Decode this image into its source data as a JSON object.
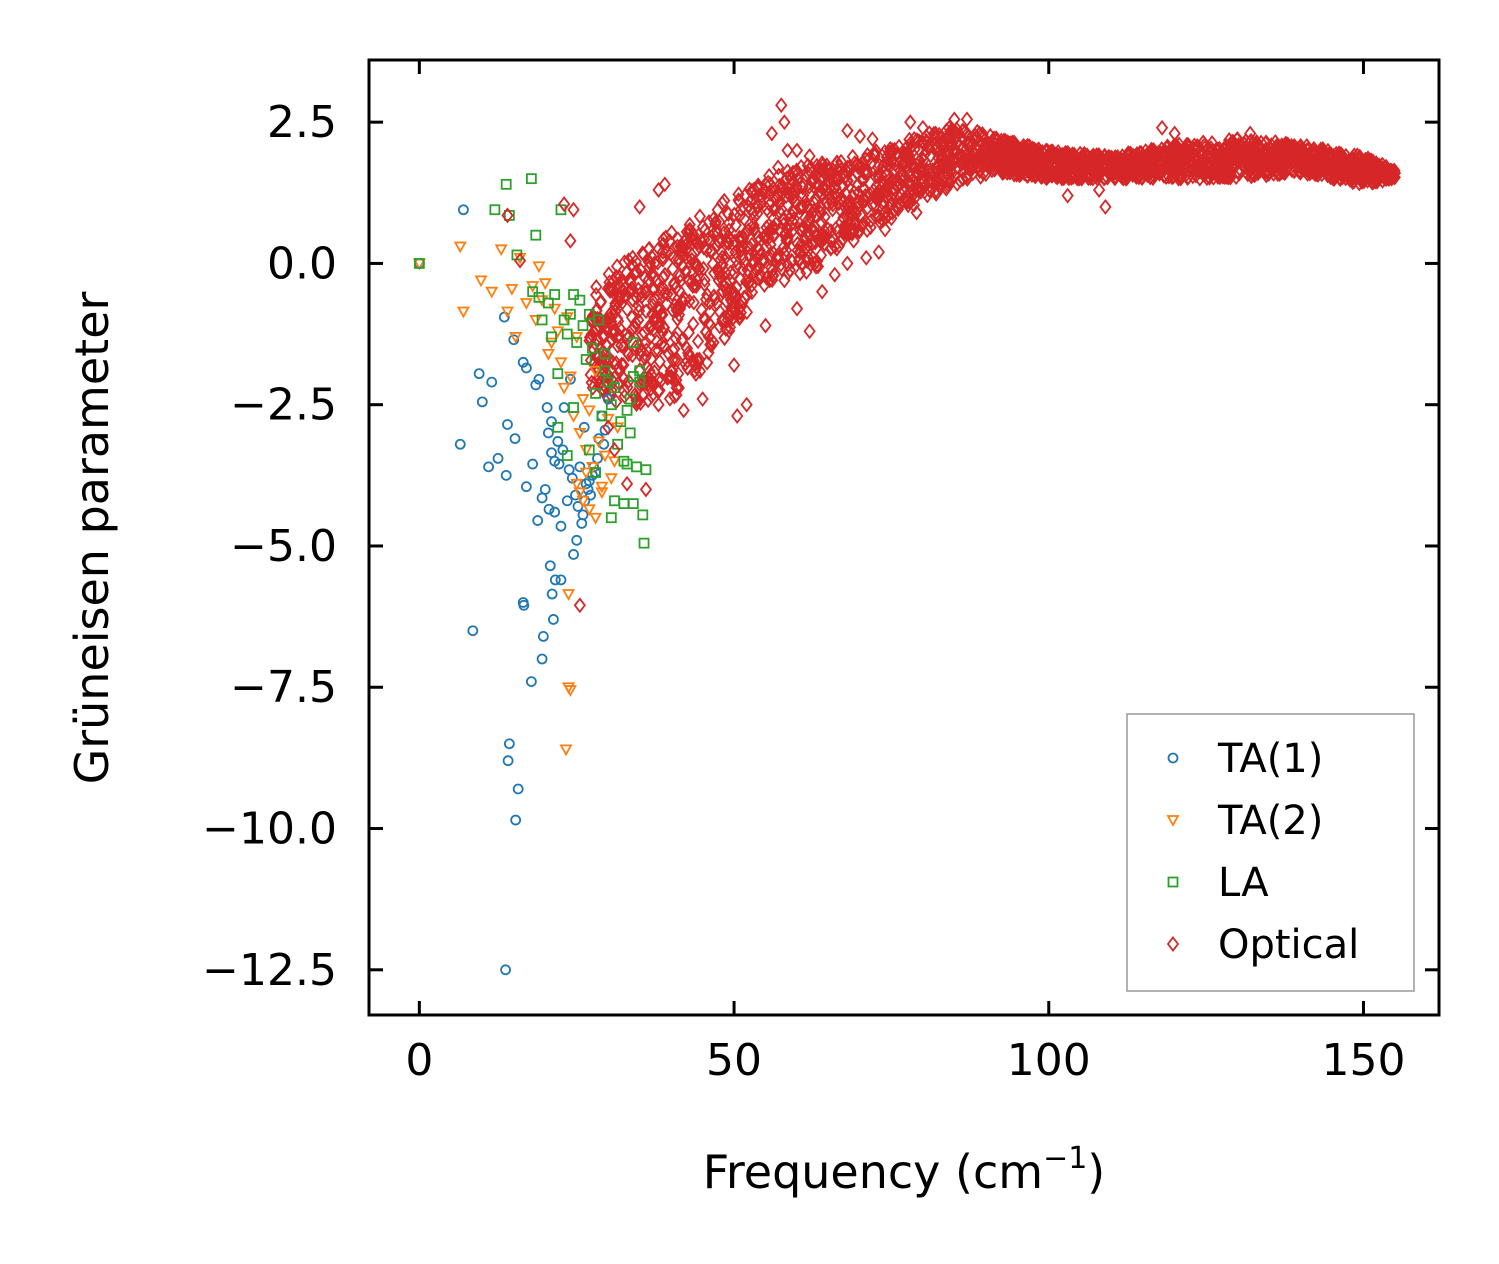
{
  "chart_data": {
    "type": "scatter",
    "title": "",
    "xlabel": "Frequency (cm",
    "xlabel_sup": "−1",
    "xlabel_close": ")",
    "ylabel": "Grüneisen parameter",
    "xlim": [
      -8,
      162
    ],
    "ylim": [
      -13.3,
      3.6
    ],
    "xticks": [
      0,
      50,
      100,
      150
    ],
    "xtick_labels": [
      "0",
      "50",
      "100",
      "150"
    ],
    "yticks": [
      2.5,
      0.0,
      -2.5,
      -5.0,
      -7.5,
      -10.0,
      -12.5
    ],
    "ytick_labels": [
      "2.5",
      "0.0",
      "−2.5",
      "−5.0",
      "−7.5",
      "−10.0",
      "−12.5"
    ],
    "grid": false,
    "legend_position": "lower-right",
    "series": [
      {
        "name": "TA(1)",
        "marker": "circle",
        "color": "#1f77b4",
        "points": [
          [
            0,
            0
          ],
          [
            7,
            0.95
          ],
          [
            6.5,
            -3.2
          ],
          [
            8.5,
            -6.5
          ],
          [
            9.5,
            -1.95
          ],
          [
            10,
            -2.45
          ],
          [
            11,
            -3.6
          ],
          [
            11.5,
            -2.1
          ],
          [
            12.5,
            -3.45
          ],
          [
            13.5,
            -0.95
          ],
          [
            13.8,
            -3.75
          ],
          [
            14,
            -2.85
          ],
          [
            13.7,
            -12.5
          ],
          [
            14.1,
            -8.8
          ],
          [
            14.3,
            -8.5
          ],
          [
            15,
            -1.35
          ],
          [
            15.2,
            -3.1
          ],
          [
            15.3,
            -9.85
          ],
          [
            15.7,
            -9.3
          ],
          [
            16.5,
            -1.75
          ],
          [
            16.5,
            -6.0
          ],
          [
            16.6,
            -6.05
          ],
          [
            17,
            -1.85
          ],
          [
            17,
            -3.95
          ],
          [
            17.8,
            -7.4
          ],
          [
            18,
            -3.55
          ],
          [
            18.5,
            -2.15
          ],
          [
            18.8,
            -4.55
          ],
          [
            19,
            -2.05
          ],
          [
            19.5,
            -4.15
          ],
          [
            19.5,
            -7.0
          ],
          [
            19.7,
            -6.6
          ],
          [
            20,
            -4.0
          ],
          [
            20.3,
            -2.55
          ],
          [
            20.5,
            -3.0
          ],
          [
            20.6,
            -4.35
          ],
          [
            20.8,
            -5.35
          ],
          [
            21,
            -3.35
          ],
          [
            21,
            -2.8
          ],
          [
            21.1,
            -5.85
          ],
          [
            21.3,
            -6.3
          ],
          [
            21.5,
            -3.5
          ],
          [
            21.5,
            -4.4
          ],
          [
            21.6,
            -5.6
          ],
          [
            22,
            -3.15
          ],
          [
            22.2,
            -3.55
          ],
          [
            22.5,
            -4.65
          ],
          [
            22.5,
            -5.6
          ],
          [
            22.8,
            -3.3
          ],
          [
            23,
            -2.55
          ],
          [
            23.5,
            -4.2
          ],
          [
            23.8,
            -3.65
          ],
          [
            24,
            -2.05
          ],
          [
            24.3,
            -3.8
          ],
          [
            24.5,
            -5.15
          ],
          [
            24.8,
            -4.1
          ],
          [
            25,
            -4.9
          ],
          [
            25.2,
            -4.3
          ],
          [
            25.5,
            -3.6
          ],
          [
            25.8,
            -4.6
          ],
          [
            26,
            -4.45
          ],
          [
            26.2,
            -2.9
          ],
          [
            26.3,
            -4.2
          ],
          [
            26.5,
            -3.9
          ],
          [
            26.8,
            -4.0
          ],
          [
            27,
            -3.85
          ],
          [
            27.2,
            -4.1
          ],
          [
            27.5,
            -3.75
          ],
          [
            27.7,
            -3.6
          ],
          [
            28,
            -3.7
          ],
          [
            28.3,
            -3.45
          ],
          [
            28.5,
            -3.1
          ],
          [
            29,
            -2.7
          ],
          [
            29.3,
            -3.2
          ],
          [
            29.5,
            -2.95
          ],
          [
            30,
            -2.4
          ]
        ]
      },
      {
        "name": "TA(2)",
        "marker": "triangle-down",
        "color": "#ff7f0e",
        "points": [
          [
            0,
            0
          ],
          [
            6.5,
            0.3
          ],
          [
            7,
            -0.85
          ],
          [
            9.8,
            -0.3
          ],
          [
            11.5,
            -0.5
          ],
          [
            13,
            0.25
          ],
          [
            14,
            -0.85
          ],
          [
            14.7,
            -0.45
          ],
          [
            15.3,
            -1.3
          ],
          [
            16,
            0.1
          ],
          [
            17,
            -0.7
          ],
          [
            18,
            -0.4
          ],
          [
            18.5,
            -1.0
          ],
          [
            19,
            -0.05
          ],
          [
            19.5,
            -0.65
          ],
          [
            20,
            -0.35
          ],
          [
            20.5,
            -1.6
          ],
          [
            21,
            -1.4
          ],
          [
            21.5,
            -0.8
          ],
          [
            22,
            -1.2
          ],
          [
            22.5,
            -1.75
          ],
          [
            23,
            -2.2
          ],
          [
            23.5,
            -0.95
          ],
          [
            23.7,
            -7.5
          ],
          [
            24,
            -7.55
          ],
          [
            23.3,
            -8.6
          ],
          [
            23.7,
            -5.85
          ],
          [
            24,
            -2.0
          ],
          [
            24.5,
            -2.7
          ],
          [
            25,
            -1.3
          ],
          [
            25.5,
            -3.0
          ],
          [
            26,
            -2.4
          ],
          [
            26.5,
            -3.3
          ],
          [
            27,
            -2.6
          ],
          [
            27.5,
            -3.6
          ],
          [
            28,
            -1.9
          ],
          [
            28.5,
            -3.15
          ],
          [
            29,
            -4.05
          ],
          [
            29.5,
            -3.4
          ],
          [
            30,
            -2.75
          ],
          [
            30.5,
            -3.8
          ],
          [
            31,
            -3.5
          ],
          [
            31.5,
            -2.9
          ],
          [
            25,
            -3.9
          ],
          [
            26,
            -4.2
          ],
          [
            27,
            -4.35
          ],
          [
            28,
            -4.5
          ],
          [
            26.5,
            -3.7
          ],
          [
            25.5,
            -4.05
          ],
          [
            29,
            -3.95
          ]
        ]
      },
      {
        "name": "LA",
        "marker": "square",
        "color": "#2ca02c",
        "points": [
          [
            0,
            0
          ],
          [
            13.8,
            1.4
          ],
          [
            17.8,
            1.5
          ],
          [
            12,
            0.95
          ],
          [
            14.3,
            0.85
          ],
          [
            15.5,
            0.15
          ],
          [
            18.5,
            0.5
          ],
          [
            22.5,
            0.95
          ],
          [
            18,
            -0.5
          ],
          [
            19,
            -0.6
          ],
          [
            19.5,
            -1.0
          ],
          [
            20.5,
            -0.7
          ],
          [
            21,
            -1.3
          ],
          [
            21.5,
            -0.55
          ],
          [
            22,
            -1.95
          ],
          [
            23,
            -1.0
          ],
          [
            23.5,
            -1.25
          ],
          [
            24,
            -0.9
          ],
          [
            24.5,
            -0.55
          ],
          [
            25,
            -1.4
          ],
          [
            25.5,
            -0.65
          ],
          [
            26,
            -1.1
          ],
          [
            26.5,
            -1.7
          ],
          [
            27,
            -0.9
          ],
          [
            27.5,
            -1.5
          ],
          [
            28,
            -2.3
          ],
          [
            28.5,
            -1.0
          ],
          [
            29,
            -2.7
          ],
          [
            29.5,
            -1.9
          ],
          [
            30,
            -2.1
          ],
          [
            30.5,
            -2.5
          ],
          [
            31,
            -2.2
          ],
          [
            31.5,
            -3.2
          ],
          [
            32,
            -2.8
          ],
          [
            32.5,
            -3.5
          ],
          [
            33,
            -2.6
          ],
          [
            33.5,
            -3.0
          ],
          [
            34,
            -2.0
          ],
          [
            34.5,
            -3.6
          ],
          [
            35,
            -1.9
          ],
          [
            35.5,
            -4.45
          ],
          [
            35.7,
            -4.95
          ],
          [
            36,
            -3.65
          ],
          [
            34,
            -1.4
          ],
          [
            33.5,
            -2.4
          ],
          [
            31,
            -4.2
          ],
          [
            32.5,
            -4.25
          ],
          [
            34,
            -4.25
          ],
          [
            30.5,
            -4.5
          ],
          [
            23.5,
            -3.4
          ],
          [
            24.5,
            -2.55
          ],
          [
            22,
            -2.9
          ],
          [
            27,
            -3.3
          ],
          [
            28,
            -3.7
          ],
          [
            33,
            -3.55
          ],
          [
            29.5,
            -1.6
          ],
          [
            35,
            -2.1
          ]
        ]
      },
      {
        "name": "Optical",
        "marker": "diamond",
        "color": "#d62728",
        "points": [
          [
            14,
            0.85
          ],
          [
            16,
            0.05
          ],
          [
            23,
            1.05
          ],
          [
            24,
            0.4
          ],
          [
            24.5,
            0.95
          ],
          [
            25.5,
            -6.05
          ],
          [
            35,
            1.0
          ],
          [
            38,
            1.3
          ],
          [
            39,
            1.4
          ],
          [
            36,
            -4.0
          ],
          [
            31,
            -3.3
          ],
          [
            33,
            -3.9
          ],
          [
            30,
            -2.9
          ],
          [
            45,
            -2.4
          ],
          [
            50,
            -1.8
          ],
          [
            52,
            -2.5
          ],
          [
            50.5,
            -2.7
          ],
          [
            56,
            2.3
          ],
          [
            57.5,
            2.8
          ],
          [
            58,
            2.5
          ],
          [
            58.5,
            2.0
          ],
          [
            57,
            1.7
          ],
          [
            55,
            1.4
          ],
          [
            60,
            2.0
          ],
          [
            62,
            1.9
          ],
          [
            65,
            1.65
          ],
          [
            67,
            1.8
          ],
          [
            68,
            2.35
          ],
          [
            70,
            2.25
          ],
          [
            72,
            2.2
          ],
          [
            69,
            0.4
          ],
          [
            71,
            0.1
          ],
          [
            73,
            0.2
          ],
          [
            75,
            0.8
          ],
          [
            78,
            2.5
          ],
          [
            80,
            2.4
          ],
          [
            82,
            2.3
          ],
          [
            85,
            2.55
          ],
          [
            87,
            2.55
          ],
          [
            89,
            2.3
          ],
          [
            90,
            2.1
          ],
          [
            93,
            1.9
          ],
          [
            95,
            2.0
          ],
          [
            98,
            1.85
          ],
          [
            100,
            1.8
          ],
          [
            102,
            1.9
          ],
          [
            103,
            1.2
          ],
          [
            105,
            1.6
          ],
          [
            107,
            1.8
          ],
          [
            108,
            1.3
          ],
          [
            109,
            1.0
          ],
          [
            110,
            1.75
          ],
          [
            112,
            1.8
          ],
          [
            115,
            1.9
          ],
          [
            118,
            2.4
          ],
          [
            120,
            2.3
          ],
          [
            122,
            2.1
          ],
          [
            124,
            1.5
          ],
          [
            126,
            2.0
          ],
          [
            128,
            1.9
          ],
          [
            130,
            2.2
          ],
          [
            132,
            2.3
          ],
          [
            134,
            1.7
          ],
          [
            136,
            2.15
          ],
          [
            138,
            2.1
          ],
          [
            140,
            1.9
          ],
          [
            142,
            2.0
          ],
          [
            144,
            1.8
          ],
          [
            146,
            1.9
          ],
          [
            148,
            1.6
          ],
          [
            150,
            1.55
          ],
          [
            152,
            1.7
          ],
          [
            153,
            1.75
          ],
          [
            154,
            1.65
          ],
          [
            155,
            1.6
          ],
          [
            40,
            -2.0
          ],
          [
            42,
            -2.6
          ],
          [
            44,
            -0.4
          ],
          [
            46,
            -1.3
          ],
          [
            48,
            0.2
          ],
          [
            49,
            -1.0
          ],
          [
            51,
            0.4
          ],
          [
            53,
            0.9
          ],
          [
            54,
            1.2
          ],
          [
            59,
            1.5
          ],
          [
            61,
            1.0
          ],
          [
            63,
            0.5
          ],
          [
            64,
            -0.5
          ],
          [
            66,
            -0.2
          ],
          [
            47,
            0.7
          ],
          [
            43,
            0.6
          ],
          [
            41,
            0.3
          ],
          [
            37,
            -0.9
          ],
          [
            38,
            -2.5
          ],
          [
            39,
            -0.2
          ],
          [
            55,
            -1.1
          ],
          [
            58,
            -0.3
          ],
          [
            60,
            -0.8
          ],
          [
            62,
            -1.2
          ],
          [
            76,
            1.0
          ],
          [
            79,
            0.9
          ],
          [
            84,
            1.6
          ],
          [
            88,
            1.7
          ],
          [
            66,
            0.3
          ],
          [
            68,
            0.0
          ],
          [
            74,
            0.6
          ],
          [
            81,
            1.3
          ]
        ],
        "band": {
          "x": [
            27,
            32,
            36,
            40,
            44,
            48,
            52,
            56,
            60,
            64,
            68,
            72,
            76,
            80,
            84,
            88,
            92,
            100,
            110,
            120,
            130,
            140,
            150,
            155
          ],
          "y_low": [
            -2.2,
            -2.5,
            -2.5,
            -2.4,
            -2.1,
            -1.4,
            -0.9,
            -0.3,
            -0.2,
            -0.1,
            0.5,
            0.6,
            0.9,
            1.1,
            1.3,
            1.5,
            1.6,
            1.5,
            1.5,
            1.5,
            1.5,
            1.6,
            1.4,
            1.5
          ],
          "y_high": [
            -0.4,
            0.0,
            0.3,
            0.6,
            0.8,
            1.1,
            1.3,
            1.6,
            1.7,
            1.8,
            1.9,
            2.0,
            2.1,
            2.3,
            2.4,
            2.4,
            2.2,
            2.0,
            1.9,
            2.1,
            2.2,
            2.1,
            1.9,
            1.65
          ]
        }
      }
    ]
  }
}
